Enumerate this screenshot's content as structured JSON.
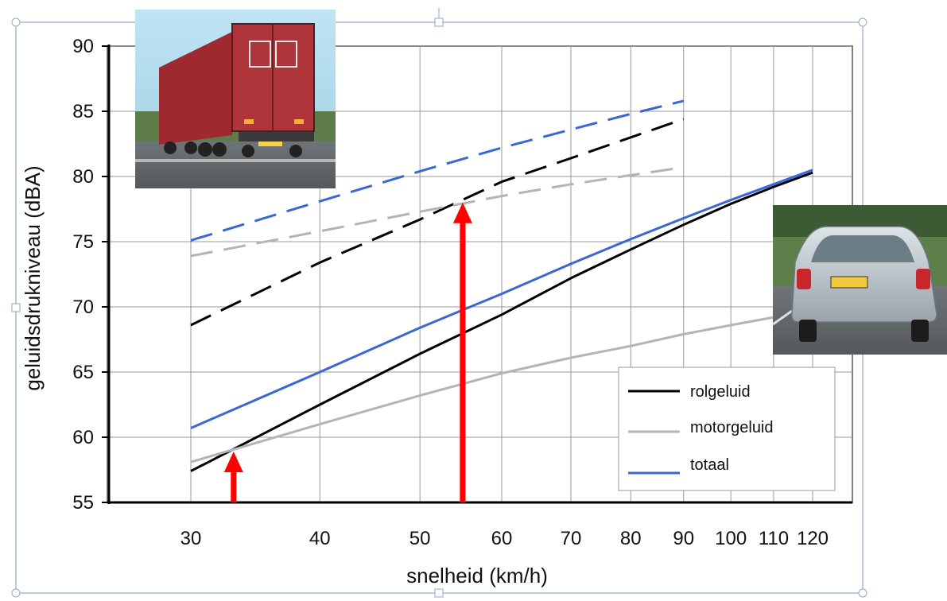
{
  "chart_data": {
    "type": "line",
    "xlabel": "snelheid (km/h)",
    "ylabel": "geluidsdrukniveau (dBA)",
    "x_scale": "log",
    "xlim": [
      30,
      120
    ],
    "ylim": [
      55,
      90
    ],
    "x_ticks": [
      "30",
      "40",
      "50",
      "60",
      "70",
      "80",
      "90",
      "100",
      "110",
      "120"
    ],
    "y_ticks": [
      "55",
      "60",
      "65",
      "70",
      "75",
      "80",
      "85",
      "90"
    ],
    "grid": true,
    "legend_position": "bottom-right",
    "legend": [
      "rolgeluid",
      "motorgeluid",
      "totaal"
    ],
    "series": [
      {
        "name": "rolgeluid",
        "group": "personenauto",
        "color": "#000000",
        "dashed": false,
        "points": [
          [
            30,
            57.4
          ],
          [
            40,
            62.5
          ],
          [
            50,
            66.4
          ],
          [
            60,
            69.4
          ],
          [
            70,
            72.2
          ],
          [
            80,
            74.4
          ],
          [
            90,
            76.3
          ],
          [
            100,
            77.9
          ],
          [
            110,
            79.2
          ],
          [
            120,
            80.3
          ]
        ]
      },
      {
        "name": "motorgeluid",
        "group": "personenauto",
        "color": "#b4b4b4",
        "dashed": false,
        "points": [
          [
            30,
            58.1
          ],
          [
            40,
            61.0
          ],
          [
            50,
            63.2
          ],
          [
            60,
            64.9
          ],
          [
            70,
            66.1
          ],
          [
            80,
            67.0
          ],
          [
            90,
            67.9
          ],
          [
            100,
            68.6
          ],
          [
            110,
            69.2
          ],
          [
            120,
            69.7
          ]
        ]
      },
      {
        "name": "totaal",
        "group": "personenauto",
        "color": "#3a66d6",
        "dashed": false,
        "points": [
          [
            30,
            60.7
          ],
          [
            40,
            65.0
          ],
          [
            50,
            68.4
          ],
          [
            60,
            71.0
          ],
          [
            70,
            73.3
          ],
          [
            80,
            75.2
          ],
          [
            90,
            76.8
          ],
          [
            100,
            78.2
          ],
          [
            110,
            79.4
          ],
          [
            120,
            80.5
          ]
        ]
      },
      {
        "name": "rolgeluid",
        "group": "vrachtwagen",
        "color": "#000000",
        "dashed": true,
        "points": [
          [
            30,
            68.6
          ],
          [
            40,
            73.4
          ],
          [
            50,
            76.7
          ],
          [
            60,
            79.6
          ],
          [
            70,
            81.4
          ],
          [
            80,
            83.0
          ],
          [
            90,
            84.4
          ]
        ]
      },
      {
        "name": "motorgeluid",
        "group": "vrachtwagen",
        "color": "#b4b4b4",
        "dashed": true,
        "points": [
          [
            30,
            73.9
          ],
          [
            40,
            75.8
          ],
          [
            50,
            77.3
          ],
          [
            60,
            78.5
          ],
          [
            70,
            79.4
          ],
          [
            80,
            80.1
          ],
          [
            90,
            80.7
          ]
        ]
      },
      {
        "name": "totaal",
        "group": "vrachtwagen",
        "color": "#3a66d6",
        "dashed": true,
        "points": [
          [
            30,
            75.1
          ],
          [
            40,
            78.1
          ],
          [
            50,
            80.4
          ],
          [
            60,
            82.2
          ],
          [
            70,
            83.6
          ],
          [
            80,
            84.8
          ],
          [
            90,
            85.8
          ]
        ]
      }
    ],
    "annotations": [
      {
        "type": "arrow",
        "color": "#ff0000",
        "x": 33,
        "from_y": 55,
        "to_y": 58.9
      },
      {
        "type": "arrow",
        "color": "#ff0000",
        "x": 55,
        "from_y": 55,
        "to_y": 78.0
      }
    ],
    "images": [
      {
        "name": "truck-photo",
        "depicts": "rode vrachtwagen, achteraanzicht"
      },
      {
        "name": "car-photo",
        "depicts": "zilveren personenauto, achteraanzicht"
      }
    ]
  }
}
